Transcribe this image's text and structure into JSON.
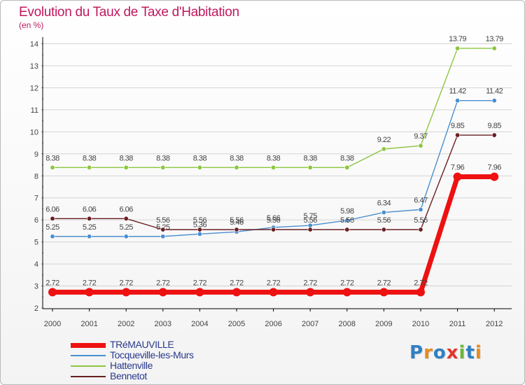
{
  "title": "Evolution du Taux de Taxe d'Habitation",
  "subtitle": "(en %)",
  "logo": {
    "text": "Proxiti",
    "letters": [
      "P",
      "r",
      "o",
      "x",
      "i",
      "t",
      "i"
    ],
    "colors": [
      "#2f7fc3",
      "#e68a1e",
      "#2f7fc3",
      "#e0352b",
      "#6ab53a",
      "#2f7fc3",
      "#e68a1e"
    ]
  },
  "colors": {
    "axis": "#000000",
    "tick_mark": "#e06666",
    "gridline": "#d4d4d4",
    "label": "#444444"
  },
  "chart_data": {
    "type": "line",
    "title": "Evolution du Taux de Taxe d'Habitation",
    "subtitle": "(en %)",
    "xlabel": "",
    "ylabel": "",
    "x": [
      "2000",
      "2001",
      "2002",
      "2003",
      "2004",
      "2005",
      "2006",
      "2007",
      "2008",
      "2009",
      "2010",
      "2011",
      "2012"
    ],
    "ylim": [
      2,
      14
    ],
    "yticks": [
      2,
      3,
      4,
      5,
      6,
      7,
      8,
      9,
      10,
      11,
      12,
      13,
      14
    ],
    "grid": "horizontal",
    "legend_position": "bottom-left",
    "series": [
      {
        "name": "Hattenville",
        "color": "#8dc63f",
        "values": [
          8.38,
          8.38,
          8.38,
          8.38,
          8.38,
          8.38,
          8.38,
          8.38,
          8.38,
          9.22,
          9.37,
          13.79,
          13.79
        ],
        "labels": [
          "8.38",
          "8.38",
          "8.38",
          "8.38",
          "8.38",
          "8.38",
          "8.38",
          "8.38",
          "8.38",
          "9.22",
          "9.37",
          "13.79",
          "13.79"
        ]
      },
      {
        "name": "Tocqueville-les-Murs",
        "color": "#4a8fcf",
        "values": [
          5.25,
          5.25,
          5.25,
          5.25,
          5.36,
          5.46,
          5.66,
          5.75,
          5.98,
          6.34,
          6.47,
          11.42,
          11.42
        ],
        "labels": [
          "5.25",
          "5.25",
          "5.25",
          "5.25",
          "5.36",
          "5.46",
          "5.66",
          "5.75",
          "5.98",
          "6.34",
          "6.47",
          "11.42",
          "11.42"
        ]
      },
      {
        "name": "Bennetot",
        "color": "#6b1f24",
        "values": [
          6.06,
          6.06,
          6.06,
          5.56,
          5.56,
          5.56,
          5.56,
          5.56,
          5.56,
          5.56,
          5.56,
          9.85,
          9.85
        ],
        "labels": [
          "6.06",
          "6.06",
          "6.06",
          "5.56",
          "5.56",
          "5.56",
          "5.56",
          "5.56",
          "5.56",
          "5.56",
          "5.56",
          "9.85",
          "9.85"
        ]
      },
      {
        "name": "TRéMAUVILLE",
        "color": "#ee1111",
        "values": [
          2.72,
          2.72,
          2.72,
          2.72,
          2.72,
          2.72,
          2.72,
          2.72,
          2.72,
          2.72,
          2.72,
          7.96,
          7.96
        ],
        "labels": [
          "2.72",
          "2.72",
          "2.72",
          "2.72",
          "2.72",
          "2.72",
          "2.72",
          "2.72",
          "2.72",
          "2.72",
          "2.72",
          "7.96",
          "7.96"
        ]
      }
    ],
    "legend_order": [
      "TRéMAUVILLE",
      "Tocqueville-les-Murs",
      "Hattenville",
      "Bennetot"
    ]
  }
}
